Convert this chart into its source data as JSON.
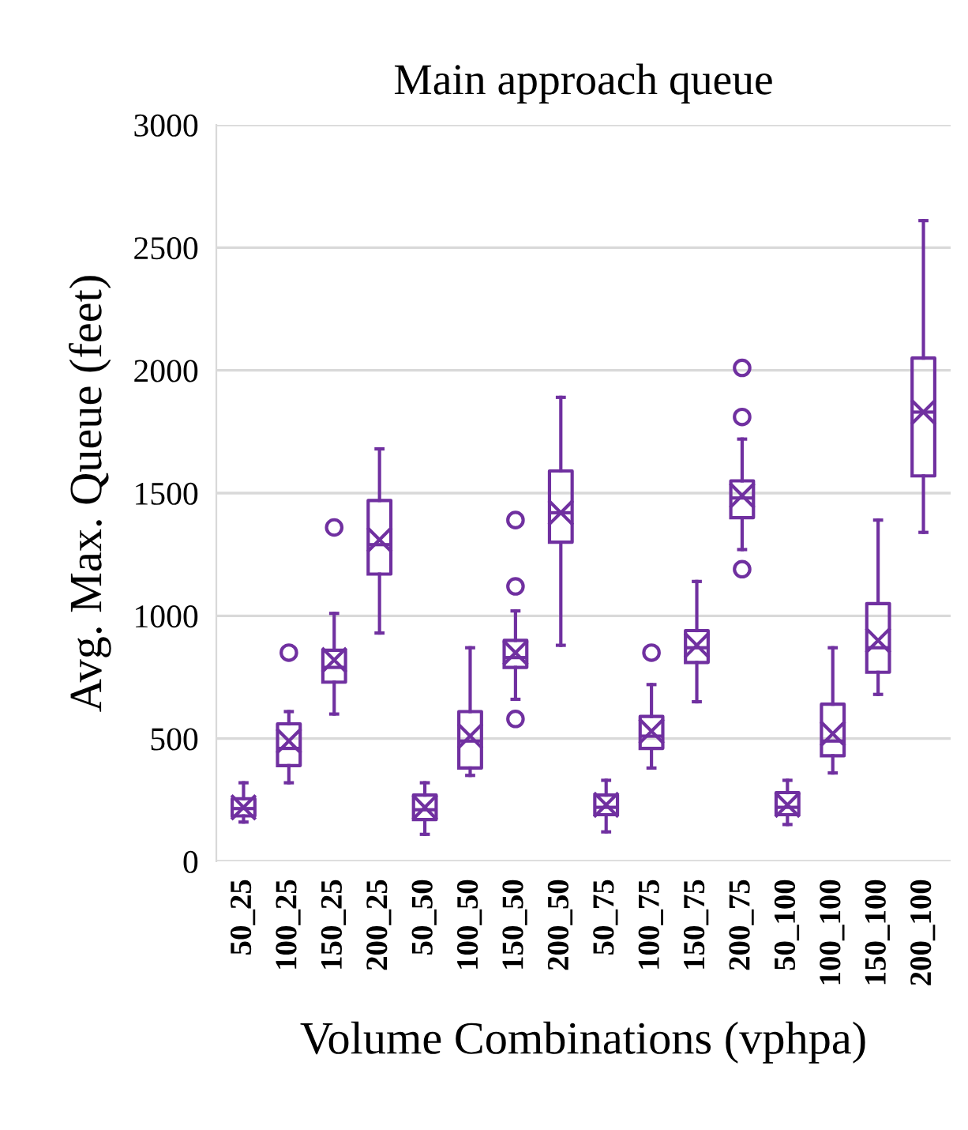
{
  "chart_data": {
    "type": "box",
    "title": "Main approach queue",
    "xlabel": "Volume Combinations (vphpa)",
    "ylabel": "Avg. Max. Queue (feet)",
    "categories": [
      "50_25",
      "100_25",
      "150_25",
      "200_25",
      "50_50",
      "100_50",
      "150_50",
      "200_50",
      "50_75",
      "100_75",
      "150_75",
      "200_75",
      "50_100",
      "100_100",
      "150_100",
      "200_100"
    ],
    "series": [
      {
        "color": "#7030a0",
        "boxes": [
          {
            "low": 160,
            "q1": 185,
            "median": 215,
            "q3": 255,
            "high": 320,
            "mean": 220
          },
          {
            "low": 320,
            "q1": 390,
            "median": 460,
            "q3": 560,
            "high": 610,
            "mean": 490,
            "outliers": [
              850
            ]
          },
          {
            "low": 600,
            "q1": 730,
            "median": 790,
            "q3": 860,
            "high": 1010,
            "mean": 820,
            "outliers": [
              1360
            ]
          },
          {
            "low": 930,
            "q1": 1170,
            "median": 1290,
            "q3": 1470,
            "high": 1680,
            "mean": 1310
          },
          {
            "low": 110,
            "q1": 170,
            "median": 210,
            "q3": 270,
            "high": 320,
            "mean": 220
          },
          {
            "low": 350,
            "q1": 380,
            "median": 490,
            "q3": 610,
            "high": 870,
            "mean": 510
          },
          {
            "low": 660,
            "q1": 790,
            "median": 830,
            "q3": 900,
            "high": 1020,
            "mean": 850,
            "outliers": [
              580,
              1120,
              1390
            ]
          },
          {
            "low": 880,
            "q1": 1300,
            "median": 1420,
            "q3": 1590,
            "high": 1890,
            "mean": 1420
          },
          {
            "low": 120,
            "q1": 190,
            "median": 220,
            "q3": 270,
            "high": 330,
            "mean": 230
          },
          {
            "low": 380,
            "q1": 460,
            "median": 510,
            "q3": 590,
            "high": 720,
            "mean": 530,
            "outliers": [
              850
            ]
          },
          {
            "low": 650,
            "q1": 810,
            "median": 870,
            "q3": 940,
            "high": 1140,
            "mean": 880
          },
          {
            "low": 1270,
            "q1": 1400,
            "median": 1480,
            "q3": 1550,
            "high": 1720,
            "mean": 1490,
            "outliers": [
              1190,
              1810,
              2010
            ]
          },
          {
            "low": 150,
            "q1": 190,
            "median": 220,
            "q3": 280,
            "high": 330,
            "mean": 230
          },
          {
            "low": 360,
            "q1": 430,
            "median": 490,
            "q3": 640,
            "high": 870,
            "mean": 520
          },
          {
            "low": 680,
            "q1": 770,
            "median": 870,
            "q3": 1050,
            "high": 1390,
            "mean": 900
          },
          {
            "low": 1340,
            "q1": 1570,
            "median": 1830,
            "q3": 2050,
            "high": 2610,
            "mean": 1830
          }
        ]
      }
    ],
    "ylim": [
      0,
      3000
    ],
    "yticks": [
      0,
      500,
      1000,
      1500,
      2000,
      2500,
      3000
    ],
    "grid": "y"
  }
}
